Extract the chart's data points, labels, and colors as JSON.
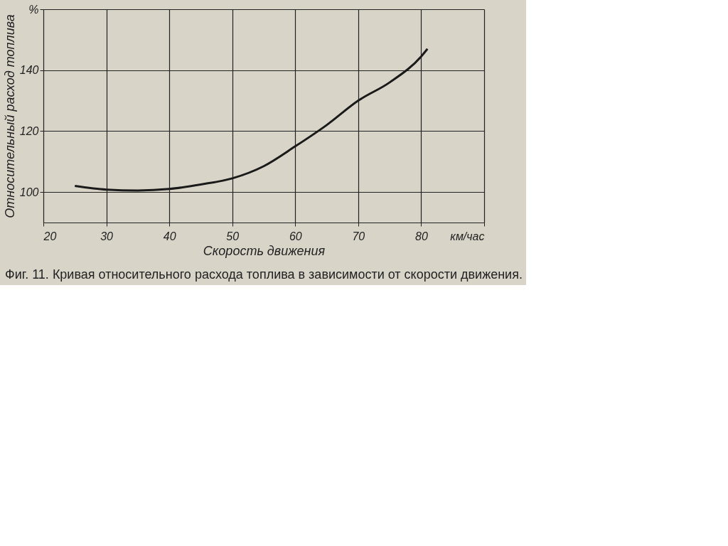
{
  "chart_data": {
    "type": "line",
    "title": "Фиг. 11. Кривая относительного расхода топлива в зависимости от скорости движения.",
    "xlabel": "Скорость движения",
    "ylabel": "Относительный расход топлива",
    "x": [
      25,
      30,
      35,
      40,
      45,
      50,
      55,
      60,
      65,
      70,
      75,
      80,
      81
    ],
    "series": [
      {
        "color": "#1a1a1a",
        "values": [
          102,
          100.8,
          100.5,
          101,
          102.5,
          104.5,
          108.5,
          115,
          122,
          130,
          136,
          144.5,
          147
        ]
      }
    ],
    "xlim": [
      20,
      90
    ],
    "xticks": [
      20,
      30,
      40,
      50,
      60,
      70,
      80,
      {
        "value": 90,
        "label": "км/час"
      }
    ],
    "ylim": [
      90,
      160
    ],
    "yticks": [
      100,
      120,
      140,
      {
        "value": 160,
        "label": "%"
      }
    ],
    "grid": true,
    "marker": "none",
    "line_style": "solid"
  }
}
